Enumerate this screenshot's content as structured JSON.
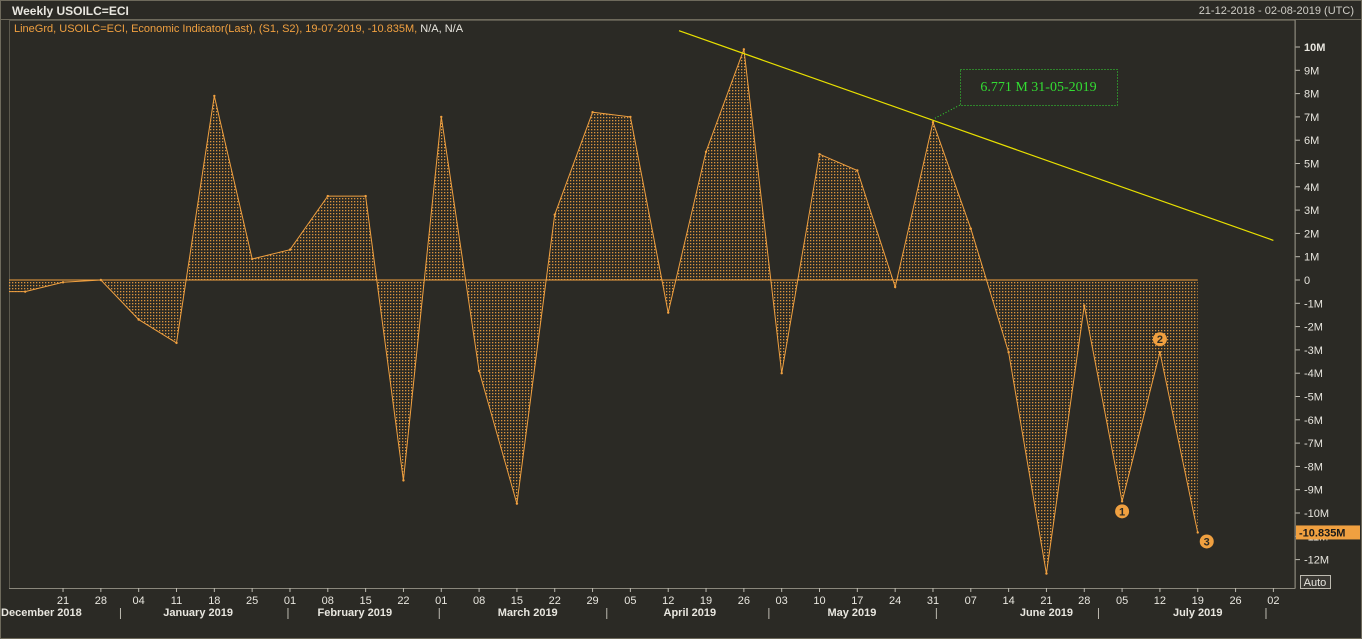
{
  "header": {
    "title": "Weekly USOILC=ECI",
    "date_range": "21-12-2018 - 02-08-2019 (UTC)"
  },
  "legend": {
    "text": "LineGrd, USOILC=ECI, Economic Indicator(Last), (S1, S2), 19-07-2019, -10.835M,",
    "na": "N/A, N/A"
  },
  "colors": {
    "background": "#2b2a25",
    "series": "#f0a040",
    "trendline": "#e8e000",
    "annotation": "#33dd33",
    "last_value_bg": "#f0a040"
  },
  "chart_data": {
    "type": "area",
    "title": "Weekly USOILC=ECI",
    "unit": "M",
    "ylim": [
      -13,
      10.5
    ],
    "y_ticks": [
      10,
      9,
      8,
      7,
      6,
      5,
      4,
      3,
      2,
      1,
      0,
      -1,
      -2,
      -3,
      -4,
      -5,
      -6,
      -7,
      -8,
      -9,
      -10,
      -11,
      -12
    ],
    "y_tick_labels": [
      "10M",
      "9M",
      "8M",
      "7M",
      "6M",
      "5M",
      "4M",
      "3M",
      "2M",
      "1M",
      "0",
      "-1M",
      "-2M",
      "-3M",
      "-4M",
      "-5M",
      "-6M",
      "-7M",
      "-8M",
      "-9M",
      "-10M",
      "-11M",
      "-12M"
    ],
    "x_ticks": [
      "2018-12-21",
      "2018-12-28",
      "2019-01-04",
      "2019-01-11",
      "2019-01-18",
      "2019-01-25",
      "2019-02-01",
      "2019-02-08",
      "2019-02-15",
      "2019-02-22",
      "2019-03-01",
      "2019-03-08",
      "2019-03-15",
      "2019-03-22",
      "2019-03-29",
      "2019-04-05",
      "2019-04-12",
      "2019-04-19",
      "2019-04-26",
      "2019-05-03",
      "2019-05-10",
      "2019-05-17",
      "2019-05-24",
      "2019-05-31",
      "2019-06-07",
      "2019-06-14",
      "2019-06-21",
      "2019-06-28",
      "2019-07-05",
      "2019-07-12",
      "2019-07-19",
      "2019-07-26",
      "2019-08-02"
    ],
    "x_tick_labels": [
      "21",
      "28",
      "04",
      "11",
      "18",
      "25",
      "01",
      "08",
      "15",
      "22",
      "01",
      "08",
      "15",
      "22",
      "29",
      "05",
      "12",
      "19",
      "26",
      "03",
      "10",
      "17",
      "24",
      "31",
      "07",
      "14",
      "21",
      "28",
      "05",
      "12",
      "19",
      "26",
      "02"
    ],
    "month_labels": [
      {
        "label": "December 2018",
        "x": "2018-12-17"
      },
      {
        "label": "January 2019",
        "x": "2019-01-15"
      },
      {
        "label": "February 2019",
        "x": "2019-02-13"
      },
      {
        "label": "March 2019",
        "x": "2019-03-17"
      },
      {
        "label": "April 2019",
        "x": "2019-04-16"
      },
      {
        "label": "May 2019",
        "x": "2019-05-16"
      },
      {
        "label": "June 2019",
        "x": "2019-06-21"
      },
      {
        "label": "July 2019",
        "x": "2019-07-19"
      }
    ],
    "month_separators": [
      "2019-01-01",
      "2019-02-01",
      "2019-03-01",
      "2019-04-01",
      "2019-05-01",
      "2019-06-01",
      "2019-07-01",
      "2019-08-01"
    ],
    "series": [
      {
        "name": "USOILC=ECI",
        "x": [
          "2018-12-14",
          "2018-12-21",
          "2018-12-28",
          "2019-01-04",
          "2019-01-11",
          "2019-01-18",
          "2019-01-25",
          "2019-02-01",
          "2019-02-08",
          "2019-02-15",
          "2019-02-22",
          "2019-03-01",
          "2019-03-08",
          "2019-03-15",
          "2019-03-22",
          "2019-03-29",
          "2019-04-05",
          "2019-04-12",
          "2019-04-19",
          "2019-04-26",
          "2019-05-03",
          "2019-05-10",
          "2019-05-17",
          "2019-05-24",
          "2019-05-31",
          "2019-06-07",
          "2019-06-14",
          "2019-06-21",
          "2019-06-28",
          "2019-07-05",
          "2019-07-12",
          "2019-07-19"
        ],
        "values": [
          -0.5,
          -0.1,
          0.0,
          -1.7,
          -2.7,
          7.9,
          0.9,
          1.3,
          3.6,
          3.6,
          -8.6,
          7.0,
          -3.9,
          -9.6,
          2.8,
          7.2,
          7.0,
          -1.4,
          5.5,
          9.9,
          -4.0,
          5.4,
          4.7,
          -0.3,
          6.771,
          2.2,
          -3.1,
          -12.6,
          -1.1,
          -9.5,
          -3.1,
          -10.835
        ]
      }
    ],
    "trendline": {
      "x": [
        "2019-04-14",
        "2019-08-02"
      ],
      "values": [
        10.7,
        1.7
      ]
    },
    "annotation": {
      "label": "6.771 M 31-05-2019",
      "x": "2019-05-31",
      "value": 6.771
    },
    "markers": [
      {
        "label": "1",
        "x": "2019-07-05",
        "value": -9.5
      },
      {
        "label": "2",
        "x": "2019-07-12",
        "value": -3.1
      },
      {
        "label": "3",
        "x": "2019-07-19",
        "value": -10.835
      }
    ],
    "last_value_label": "-10.835M",
    "last_value": -10.835,
    "auto_label": "Auto"
  }
}
